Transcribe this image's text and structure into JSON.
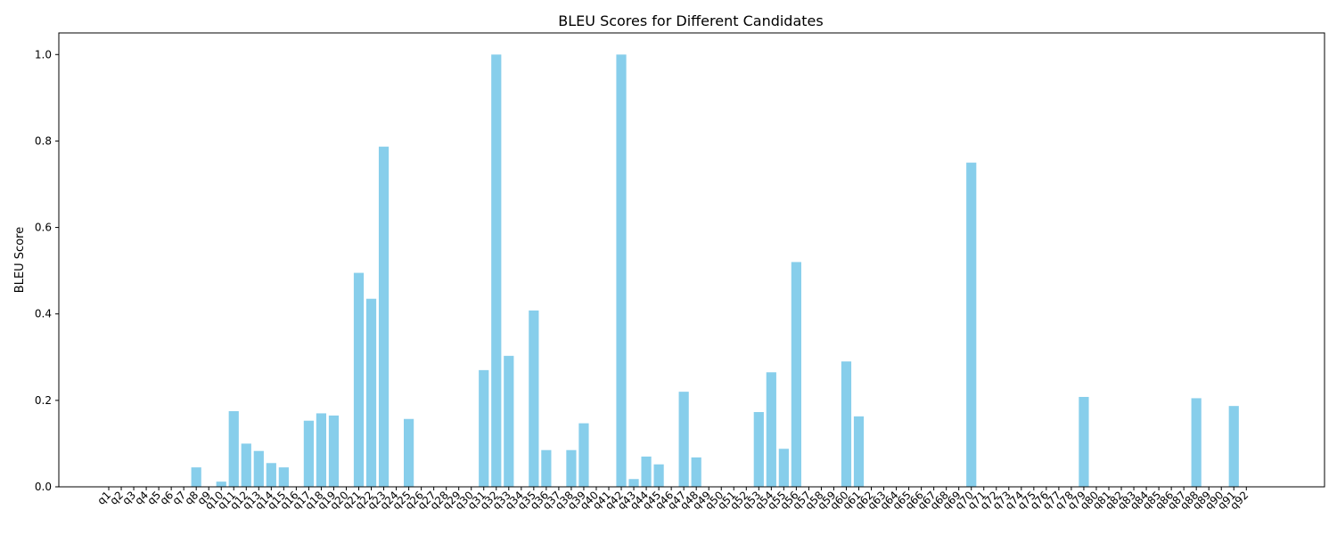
{
  "chart_data": {
    "type": "bar",
    "title": "BLEU Scores for Different Candidates",
    "xlabel": "",
    "ylabel": "BLEU Score",
    "ylim": [
      0,
      1.05
    ],
    "yticks": [
      "0.0",
      "0.2",
      "0.4",
      "0.6",
      "0.8",
      "1.0"
    ],
    "grid": false,
    "bar_color": "#87ceeb",
    "categories": [
      "q1",
      "q2",
      "q3",
      "q4",
      "q5",
      "q6",
      "q7",
      "q8",
      "q9",
      "q10",
      "q11",
      "q12",
      "q13",
      "q14",
      "q15",
      "q16",
      "q17",
      "q18",
      "q19",
      "q20",
      "q21",
      "q22",
      "q23",
      "q24",
      "q25",
      "q26",
      "q27",
      "q28",
      "q29",
      "q30",
      "q31",
      "q32",
      "q33",
      "q34",
      "q35",
      "q36",
      "q37",
      "q38",
      "q39",
      "q40",
      "q41",
      "q42",
      "q43",
      "q44",
      "q45",
      "q46",
      "q47",
      "q48",
      "q49",
      "q50",
      "q51",
      "q52",
      "q53",
      "q54",
      "q55",
      "q56",
      "q57",
      "q58",
      "q59",
      "q60",
      "q61",
      "q62",
      "q63",
      "q64",
      "q65",
      "q66",
      "q67",
      "q68",
      "q69",
      "q70",
      "q71",
      "q72",
      "q73",
      "q74",
      "q75",
      "q76",
      "q77",
      "q78",
      "q79",
      "q80",
      "q81",
      "q82",
      "q83",
      "q84",
      "q85",
      "q86",
      "q87",
      "q88",
      "q89",
      "q90",
      "q91",
      "q92"
    ],
    "values": [
      0,
      0,
      0,
      0,
      0,
      0,
      0,
      0.045,
      0,
      0.012,
      0.175,
      0.1,
      0.083,
      0.055,
      0.045,
      0,
      0.153,
      0.17,
      0.165,
      0,
      0.495,
      0.435,
      0.787,
      0,
      0.157,
      0,
      0,
      0,
      0,
      0,
      0.27,
      1.0,
      0.303,
      0,
      0.408,
      0.085,
      0,
      0.085,
      0.147,
      0,
      0,
      1.0,
      0.018,
      0.07,
      0.052,
      0,
      0.22,
      0.068,
      0,
      0,
      0,
      0,
      0.173,
      0.265,
      0.088,
      0.52,
      0,
      0,
      0,
      0.29,
      0.163,
      0,
      0,
      0,
      0,
      0,
      0,
      0,
      0,
      0.75,
      0,
      0,
      0,
      0,
      0,
      0,
      0,
      0,
      0.208,
      0,
      0,
      0,
      0,
      0,
      0,
      0,
      0,
      0.205,
      0,
      0,
      0.187,
      0
    ]
  }
}
